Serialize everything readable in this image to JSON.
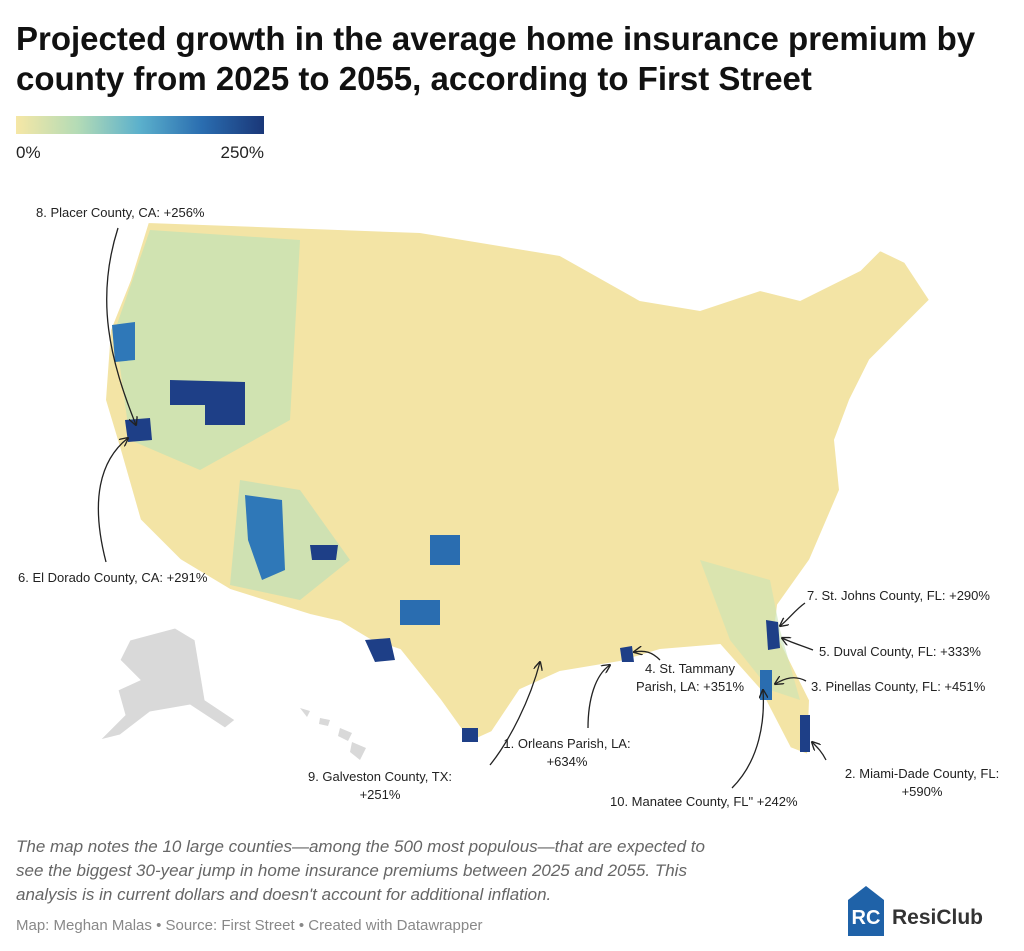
{
  "title": [
    "Projected growth in the average home insurance premium by",
    "county from 2025 to 2055, according to First Street"
  ],
  "legend": {
    "labels": [
      "0%",
      "250%"
    ],
    "colors": [
      "#f6e7a6",
      "#b3dbb6",
      "#5bb0cc",
      "#2a6db0",
      "#1a3778"
    ]
  },
  "annotations": [
    {
      "lines": [
        "1. Orleans Parish, LA:",
        "+634%"
      ]
    },
    {
      "lines": [
        "2. Miami-Dade County, FL:",
        "+590%"
      ]
    },
    {
      "lines": [
        "3. Pinellas County, FL: +451%"
      ]
    },
    {
      "lines": [
        "4. St. Tammany",
        "Parish, LA: +351%"
      ]
    },
    {
      "lines": [
        "5. Duval County, FL: +333%"
      ]
    },
    {
      "lines": [
        "6. El Dorado County, CA: +291%"
      ]
    },
    {
      "lines": [
        "7. St. Johns County, FL: +290%"
      ]
    },
    {
      "lines": [
        "8. Placer County, CA: +256%"
      ]
    },
    {
      "lines": [
        "9. Galveston County, TX:",
        "+251%"
      ]
    },
    {
      "lines": [
        "10. Manatee County, FL\" +242%"
      ]
    }
  ],
  "caption": [
    "The map notes the 10 large counties—among the 500 most populous—that are expected to",
    "see the biggest 30-year jump in home insurance premiums between 2025 and 2055. This",
    "analysis is in current dollars and doesn't account for additional inflation."
  ],
  "source": "Map: Meghan Malas • Source: First Street • Created with Datawrapper",
  "logo": {
    "mark": "RC",
    "name": "ResiClub"
  }
}
